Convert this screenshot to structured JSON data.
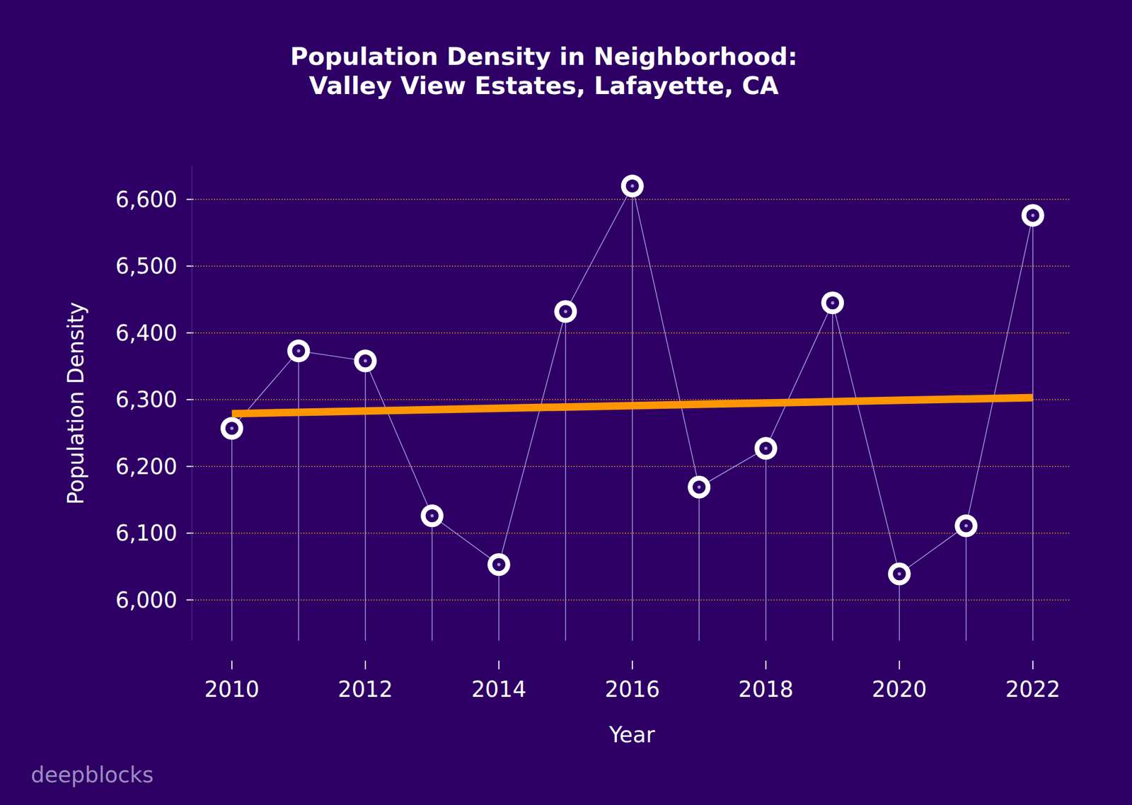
{
  "chart_data": {
    "type": "line",
    "title": "Population Density in Neighborhood:\nValley View Estates, Lafayette, CA",
    "x_label": "Year",
    "y_label": "Population Density",
    "watermark": "deepblocks",
    "x": [
      2010,
      2011,
      2012,
      2013,
      2014,
      2015,
      2016,
      2017,
      2018,
      2019,
      2020,
      2021,
      2022
    ],
    "xlim": [
      2009.45,
      2022.57
    ],
    "xticks": [
      2010,
      2012,
      2014,
      2016,
      2018,
      2020,
      2022
    ],
    "ylim": [
      5939,
      6650
    ],
    "yticks": [
      {
        "value": 6000,
        "label": "6,000"
      },
      {
        "value": 6100,
        "label": "6,100"
      },
      {
        "value": 6200,
        "label": "6,200"
      },
      {
        "value": 6300,
        "label": "6,300"
      },
      {
        "value": 6400,
        "label": "6,400"
      },
      {
        "value": 6500,
        "label": "6,500"
      },
      {
        "value": 6600,
        "label": "6,600"
      }
    ],
    "grid": true,
    "series": [
      {
        "type": "stem",
        "color": "#ffffff",
        "marker": "o",
        "line_style": "solid",
        "values": [
          6257,
          6373,
          6358,
          6126,
          6053,
          6432,
          6620,
          6169,
          6227,
          6445,
          6039,
          6111,
          6576
        ]
      },
      {
        "type": "line",
        "color": "#ff9500",
        "line_style": "solid",
        "x": [
          2010,
          2022
        ],
        "values": [
          6279,
          6303
        ]
      }
    ]
  }
}
